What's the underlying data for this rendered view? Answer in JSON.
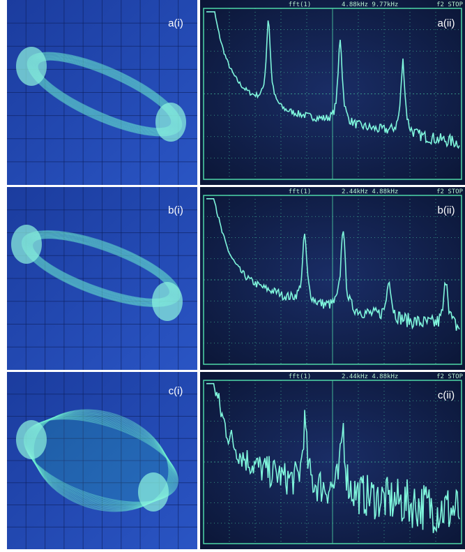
{
  "rows": [
    {
      "left": {
        "label": "a(i)"
      },
      "right": {
        "label": "a(ii)",
        "header": {
          "mode": "fft(1)",
          "scale": "4.88kHz 9.77kHz",
          "status": "f2 STOP"
        }
      }
    },
    {
      "left": {
        "label": "b(i)"
      },
      "right": {
        "label": "b(ii)",
        "header": {
          "mode": "fft(1)",
          "scale": "2.44kHz 4.88kHz",
          "status": "f2 STOP"
        }
      }
    },
    {
      "left": {
        "label": "c(i)"
      },
      "right": {
        "label": "c(ii)",
        "header": {
          "mode": "fft(1)",
          "scale": "2.44kHz 4.88kHz",
          "status": "f2 STOP"
        }
      }
    }
  ]
}
